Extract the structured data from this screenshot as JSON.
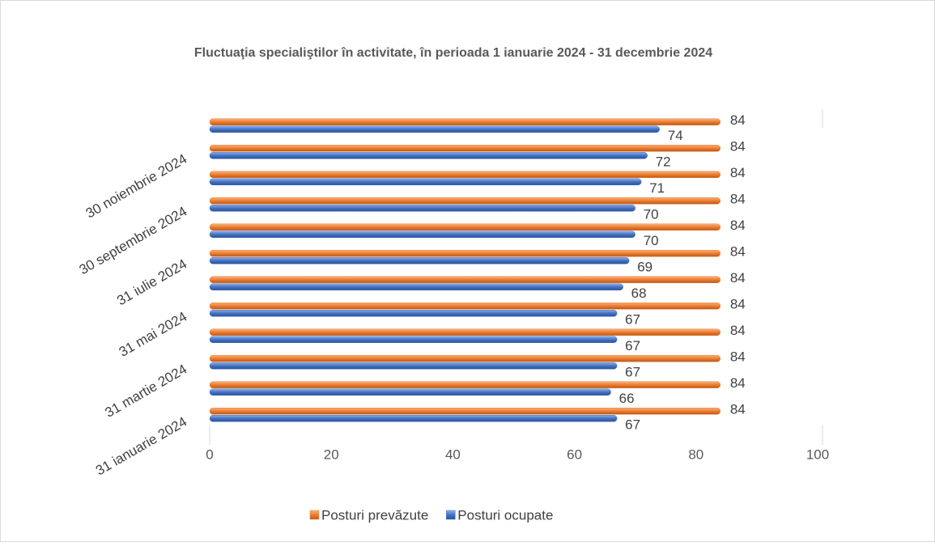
{
  "chart_data": {
    "type": "bar",
    "orientation": "horizontal",
    "title": "Fluctuaţia specialiştilor în activitate, în perioada 1 ianuarie 2024 - 31 decembrie 2024",
    "categories": [
      "31 ianuarie 2024",
      null,
      "31 martie 2024",
      null,
      "31 mai 2024",
      null,
      "31 iulie 2024",
      null,
      "30 septembrie 2024",
      null,
      "30 noiembrie 2024",
      null
    ],
    "series": [
      {
        "name": "Posturi prevăzute",
        "color": "#ed7d31",
        "values": [
          84,
          84,
          84,
          84,
          84,
          84,
          84,
          84,
          84,
          84,
          84,
          84
        ]
      },
      {
        "name": "Posturi ocupate",
        "color": "#4472c4",
        "values": [
          67,
          66,
          67,
          67,
          67,
          68,
          69,
          70,
          70,
          71,
          72,
          74
        ]
      }
    ],
    "xlim": [
      0,
      100
    ],
    "xticks": [
      0,
      20,
      40,
      60,
      80,
      100
    ],
    "grid": false,
    "legend": "bottom"
  }
}
